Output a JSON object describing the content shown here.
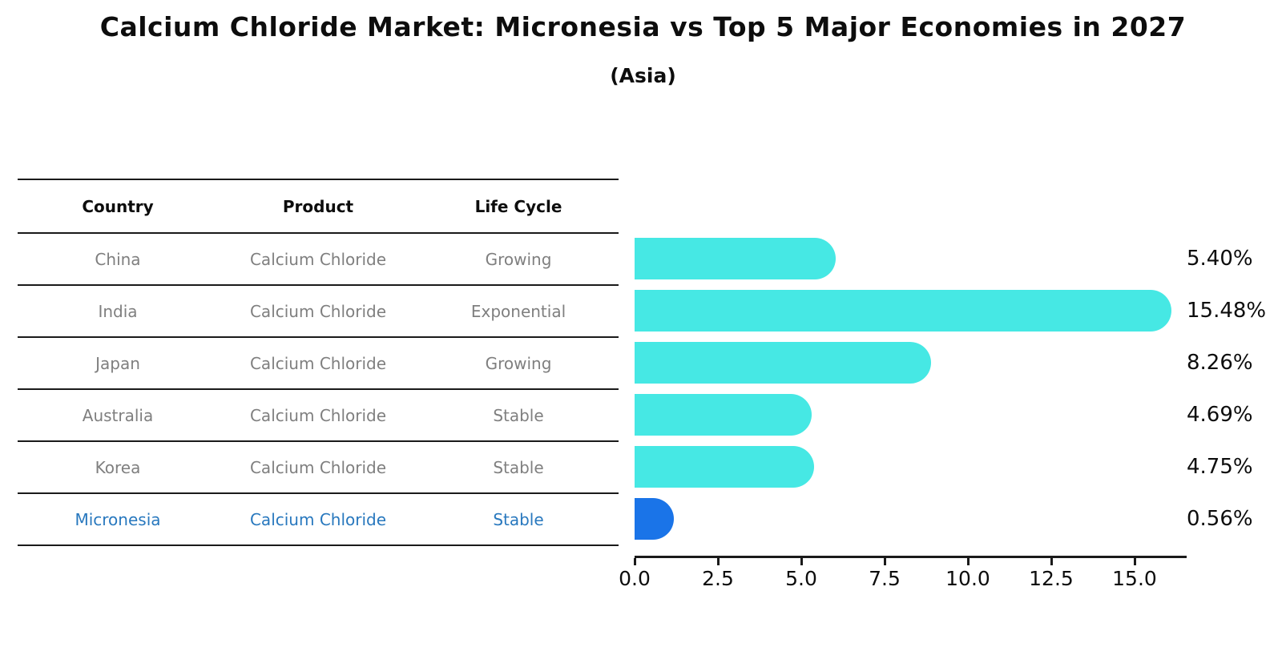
{
  "title": "Calcium Chloride Market: Micronesia vs Top 5 Major Economies in 2027",
  "subtitle": "(Asia)",
  "table": {
    "headers": [
      "Country",
      "Product",
      "Life Cycle"
    ],
    "rows": [
      {
        "country": "China",
        "product": "Calcium Chloride",
        "life_cycle": "Growing",
        "highlight": false
      },
      {
        "country": "India",
        "product": "Calcium Chloride",
        "life_cycle": "Exponential",
        "highlight": false
      },
      {
        "country": "Japan",
        "product": "Calcium Chloride",
        "life_cycle": "Growing",
        "highlight": false
      },
      {
        "country": "Australia",
        "product": "Calcium Chloride",
        "life_cycle": "Stable",
        "highlight": false
      },
      {
        "country": "Korea",
        "product": "Calcium Chloride",
        "life_cycle": "Stable",
        "highlight": false
      },
      {
        "country": "Micronesia",
        "product": "Calcium Chloride",
        "life_cycle": "Stable",
        "highlight": true
      }
    ]
  },
  "chart_data": {
    "type": "bar",
    "orientation": "horizontal",
    "title": "Calcium Chloride Market: Micronesia vs Top 5 Major Economies in 2027",
    "subtitle": "(Asia)",
    "categories": [
      "China",
      "India",
      "Japan",
      "Australia",
      "Korea",
      "Micronesia"
    ],
    "values": [
      5.4,
      15.48,
      8.26,
      4.69,
      4.75,
      0.56
    ],
    "value_labels": [
      "5.40%",
      "15.48%",
      "8.26%",
      "4.69%",
      "4.75%",
      "0.56%"
    ],
    "x_tick_values": [
      0,
      2.5,
      5,
      7.5,
      10,
      12.5,
      15
    ],
    "x_tick_labels": [
      "0.0",
      "2.5",
      "5.0",
      "7.5",
      "10.0",
      "12.5",
      "15.0"
    ],
    "xlim": [
      0,
      16.55
    ],
    "grid": false,
    "legend": false,
    "highlight_index": 5,
    "bar_style": "rounded-right-cap"
  },
  "colors": {
    "bar": "#46e8e4",
    "highlight_bar": "#1a74e8",
    "row_text": "#7f7f7f",
    "highlight_text": "#2878be",
    "heading_text": "#0d0d0d",
    "line": "#1a1a1a"
  }
}
